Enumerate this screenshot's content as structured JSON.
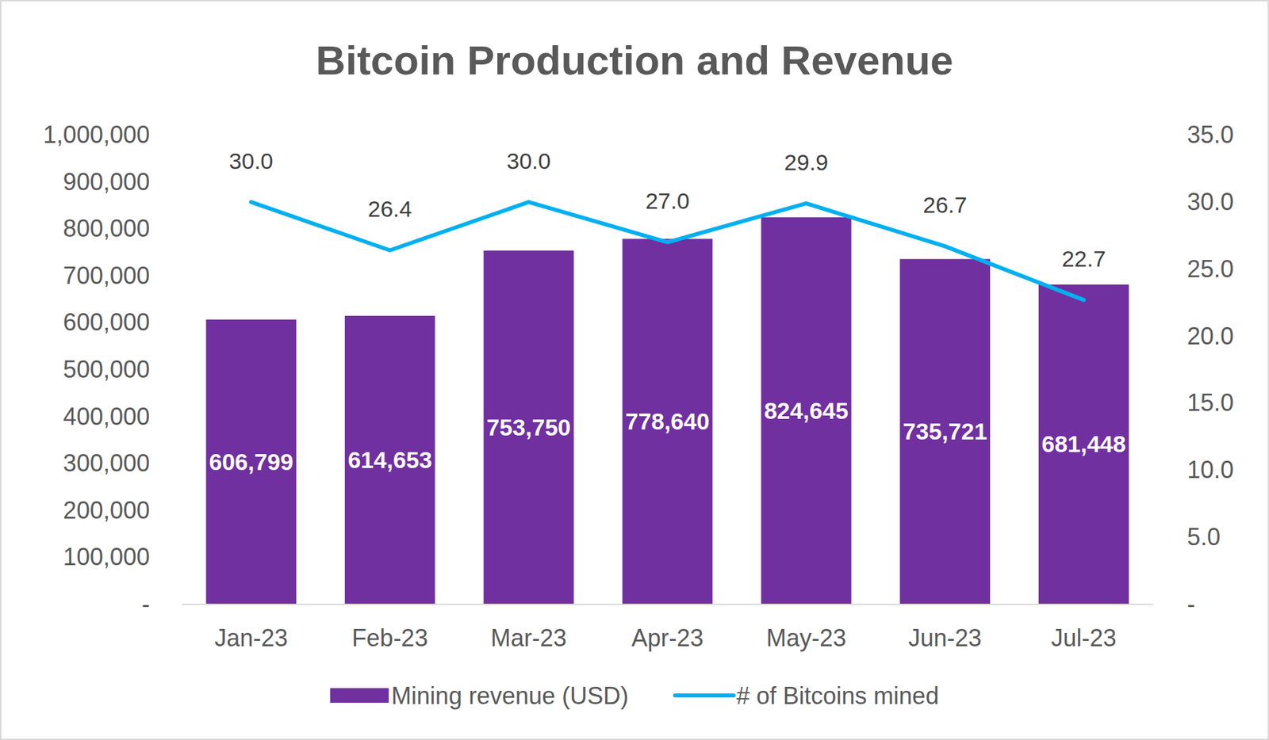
{
  "chart_data": {
    "type": "bar",
    "title": "Bitcoin Production and Revenue",
    "categories": [
      "Jan-23",
      "Feb-23",
      "Mar-23",
      "Apr-23",
      "May-23",
      "Jun-23",
      "Jul-23"
    ],
    "series": [
      {
        "name": "Mining revenue (USD)",
        "type": "bar",
        "color": "#7030a0",
        "values": [
          606799,
          614653,
          753750,
          778640,
          824645,
          735721,
          681448
        ],
        "value_labels": [
          "606,799",
          "614,653",
          "753,750",
          "778,640",
          "824,645",
          "735,721",
          "681,448"
        ]
      },
      {
        "name": "# of Bitcoins mined",
        "type": "line",
        "axis": "y2",
        "color": "#00b0f0",
        "values": [
          30.0,
          26.4,
          30.0,
          27.0,
          29.9,
          26.7,
          22.7
        ],
        "value_labels": [
          "30.0",
          "26.4",
          "30.0",
          "27.0",
          "29.9",
          "26.7",
          "22.7"
        ]
      }
    ],
    "ylim": [
      0,
      1000000
    ],
    "yticks": [
      {
        "value": 0,
        "label": "-"
      },
      {
        "value": 100000,
        "label": "100,000"
      },
      {
        "value": 200000,
        "label": "200,000"
      },
      {
        "value": 300000,
        "label": "300,000"
      },
      {
        "value": 400000,
        "label": "400,000"
      },
      {
        "value": 500000,
        "label": "500,000"
      },
      {
        "value": 600000,
        "label": "600,000"
      },
      {
        "value": 700000,
        "label": "700,000"
      },
      {
        "value": 800000,
        "label": "800,000"
      },
      {
        "value": 900000,
        "label": "900,000"
      },
      {
        "value": 1000000,
        "label": "1,000,000"
      }
    ],
    "y2lim": [
      0,
      35
    ],
    "y2ticks": [
      {
        "value": 0,
        "label": "-"
      },
      {
        "value": 5,
        "label": "5.0"
      },
      {
        "value": 10,
        "label": "10.0"
      },
      {
        "value": 15,
        "label": "15.0"
      },
      {
        "value": 20,
        "label": "20.0"
      },
      {
        "value": 25,
        "label": "25.0"
      },
      {
        "value": 30,
        "label": "30.0"
      },
      {
        "value": 35,
        "label": "35.0"
      }
    ],
    "grid": false,
    "legend": "bottom",
    "data_labels": true
  }
}
